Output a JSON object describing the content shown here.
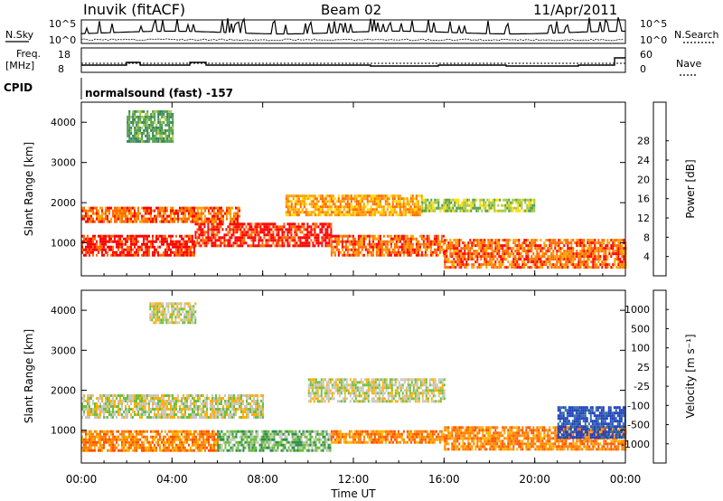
{
  "header": {
    "station": "Inuvik (fitACF)",
    "beam": "Beam 02",
    "date": "11/Apr/2011"
  },
  "panels": {
    "nsky_label": "N.Sky",
    "nsearch_label": "N.Search",
    "freq_label_1": "Freq.",
    "freq_label_2": "[MHz]",
    "nave_label": "Nave",
    "cpid_label": "CPID",
    "cpid_text": "normalsound (fast) -157",
    "nsky_ticks": [
      "10^5",
      "10^0"
    ],
    "nsearch_ticks": [
      "10^5",
      "10^0"
    ],
    "freq_ticks": [
      "18",
      "8"
    ],
    "nave_ticks": [
      "60",
      "0"
    ]
  },
  "chart_data": [
    {
      "type": "heatmap",
      "title": "",
      "xlabel": "",
      "ylabel": "Slant Range [km]",
      "xlim": [
        0,
        24
      ],
      "ylim": [
        180,
        4500
      ],
      "x_ticks": [
        0,
        4,
        8,
        12,
        16,
        20,
        24
      ],
      "y_ticks": [
        1000,
        2000,
        3000,
        4000
      ],
      "colorbar": {
        "label": "Power [dB]",
        "ticks": [
          "4",
          "8",
          "12",
          "16",
          "20",
          "24",
          "28"
        ],
        "colors": [
          "#0000ff",
          "#1f4fb4",
          "#2f7f5f",
          "#4f9f4f",
          "#a8c840",
          "#ffdd00",
          "#ff9f00",
          "#ff6a00",
          "#ff0000"
        ]
      },
      "regions": [
        {
          "x": [
            0,
            5
          ],
          "y": [
            700,
            1200
          ],
          "level": 8
        },
        {
          "x": [
            5,
            11
          ],
          "y": [
            900,
            1500
          ],
          "level": 8
        },
        {
          "x": [
            11,
            16
          ],
          "y": [
            700,
            1200
          ],
          "level": 7
        },
        {
          "x": [
            16,
            24
          ],
          "y": [
            400,
            1100
          ],
          "level": 7
        },
        {
          "x": [
            0,
            7
          ],
          "y": [
            1500,
            1900
          ],
          "level": 7
        },
        {
          "x": [
            9,
            15
          ],
          "y": [
            1700,
            2200
          ],
          "level": 6
        },
        {
          "x": [
            15,
            20
          ],
          "y": [
            1800,
            2100
          ],
          "level": 4
        },
        {
          "x": [
            2,
            4
          ],
          "y": [
            3500,
            4300
          ],
          "level": 3
        }
      ]
    },
    {
      "type": "heatmap",
      "title": "",
      "xlabel": "Time UT",
      "ylabel": "Slant Range [km]",
      "xlim": [
        0,
        24
      ],
      "ylim": [
        180,
        4500
      ],
      "x_ticks": [
        0,
        4,
        8,
        12,
        16,
        20,
        24
      ],
      "x_tick_labels": [
        "00:00",
        "04:00",
        "08:00",
        "12:00",
        "16:00",
        "20:00",
        "00:00"
      ],
      "y_ticks": [
        1000,
        2000,
        3000,
        4000
      ],
      "colorbar": {
        "label": "Velocity [m s⁻¹]",
        "ticks": [
          "1000",
          "500",
          "100",
          "25",
          "-25",
          "-100",
          "-500",
          "-1000"
        ],
        "colors": [
          "#1f3fbf",
          "#2f6fa0",
          "#2f8f4f",
          "#6fbf3f",
          "#c8c8c0",
          "#ffb000",
          "#ff8000",
          "#ff5000",
          "#ff0000"
        ]
      },
      "regions": [
        {
          "x": [
            0,
            6
          ],
          "y": [
            500,
            1000
          ],
          "level": 6
        },
        {
          "x": [
            6,
            11
          ],
          "y": [
            500,
            1000
          ],
          "level": 3
        },
        {
          "x": [
            11,
            16
          ],
          "y": [
            700,
            1000
          ],
          "level": 6
        },
        {
          "x": [
            16,
            24
          ],
          "y": [
            500,
            1100
          ],
          "level": 6
        },
        {
          "x": [
            0,
            8
          ],
          "y": [
            1300,
            1900
          ],
          "level": 4
        },
        {
          "x": [
            10,
            16
          ],
          "y": [
            1700,
            2300
          ],
          "level": 4
        },
        {
          "x": [
            21,
            24
          ],
          "y": [
            800,
            1600
          ],
          "level": 0
        },
        {
          "x": [
            3,
            5
          ],
          "y": [
            3700,
            4200
          ],
          "level": 4
        }
      ]
    }
  ]
}
